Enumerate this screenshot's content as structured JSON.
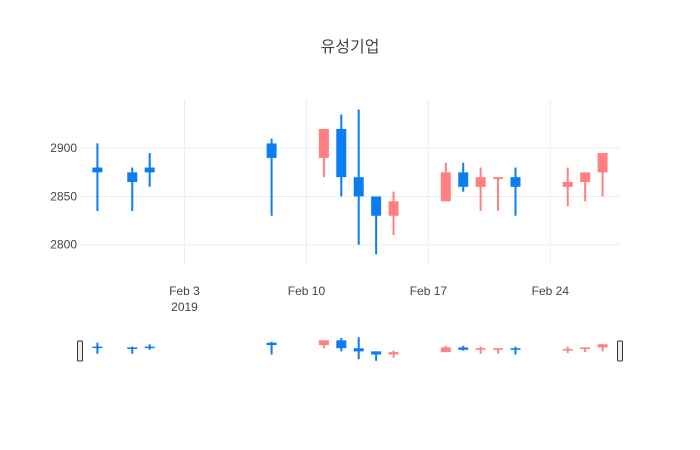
{
  "chart_data": {
    "type": "candlestick",
    "title": "유성기업",
    "xlabel": "",
    "ylabel": "",
    "x_range": [
      "2019-01-28",
      "2019-02-28"
    ],
    "ylim": [
      2780,
      2950
    ],
    "y_ticks": [
      2800,
      2850,
      2900
    ],
    "x_ticks": [
      {
        "date": "2019-02-03",
        "label": "Feb 3",
        "sublabel": "2019"
      },
      {
        "date": "2019-02-10",
        "label": "Feb 10",
        "sublabel": ""
      },
      {
        "date": "2019-02-17",
        "label": "Feb 17",
        "sublabel": ""
      },
      {
        "date": "2019-02-24",
        "label": "Feb 24",
        "sublabel": ""
      }
    ],
    "grid": true,
    "legend": false,
    "rangeslider": true,
    "colors": {
      "increasing": "#0a7df2",
      "decreasing": "#ff8080",
      "grid": "#eeeeee",
      "text": "#444444"
    },
    "candles": [
      {
        "date": "2019-01-29",
        "open": 2875,
        "high": 2905,
        "low": 2835,
        "close": 2880
      },
      {
        "date": "2019-01-31",
        "open": 2865,
        "high": 2880,
        "low": 2835,
        "close": 2875
      },
      {
        "date": "2019-02-01",
        "open": 2875,
        "high": 2895,
        "low": 2860,
        "close": 2880
      },
      {
        "date": "2019-02-08",
        "open": 2890,
        "high": 2910,
        "low": 2830,
        "close": 2905
      },
      {
        "date": "2019-02-11",
        "open": 2920,
        "high": 2920,
        "low": 2870,
        "close": 2890
      },
      {
        "date": "2019-02-12",
        "open": 2870,
        "high": 2935,
        "low": 2850,
        "close": 2920
      },
      {
        "date": "2019-02-13",
        "open": 2850,
        "high": 2940,
        "low": 2800,
        "close": 2870
      },
      {
        "date": "2019-02-14",
        "open": 2830,
        "high": 2850,
        "low": 2790,
        "close": 2850
      },
      {
        "date": "2019-02-15",
        "open": 2845,
        "high": 2855,
        "low": 2810,
        "close": 2830
      },
      {
        "date": "2019-02-18",
        "open": 2875,
        "high": 2885,
        "low": 2845,
        "close": 2845
      },
      {
        "date": "2019-02-19",
        "open": 2860,
        "high": 2885,
        "low": 2855,
        "close": 2875
      },
      {
        "date": "2019-02-20",
        "open": 2870,
        "high": 2880,
        "low": 2835,
        "close": 2860
      },
      {
        "date": "2019-02-21",
        "open": 2870,
        "high": 2870,
        "low": 2835,
        "close": 2868
      },
      {
        "date": "2019-02-22",
        "open": 2860,
        "high": 2880,
        "low": 2830,
        "close": 2870
      },
      {
        "date": "2019-02-25",
        "open": 2865,
        "high": 2880,
        "low": 2840,
        "close": 2860
      },
      {
        "date": "2019-02-26",
        "open": 2875,
        "high": 2875,
        "low": 2845,
        "close": 2865
      },
      {
        "date": "2019-02-27",
        "open": 2895,
        "high": 2895,
        "low": 2850,
        "close": 2875
      }
    ]
  }
}
